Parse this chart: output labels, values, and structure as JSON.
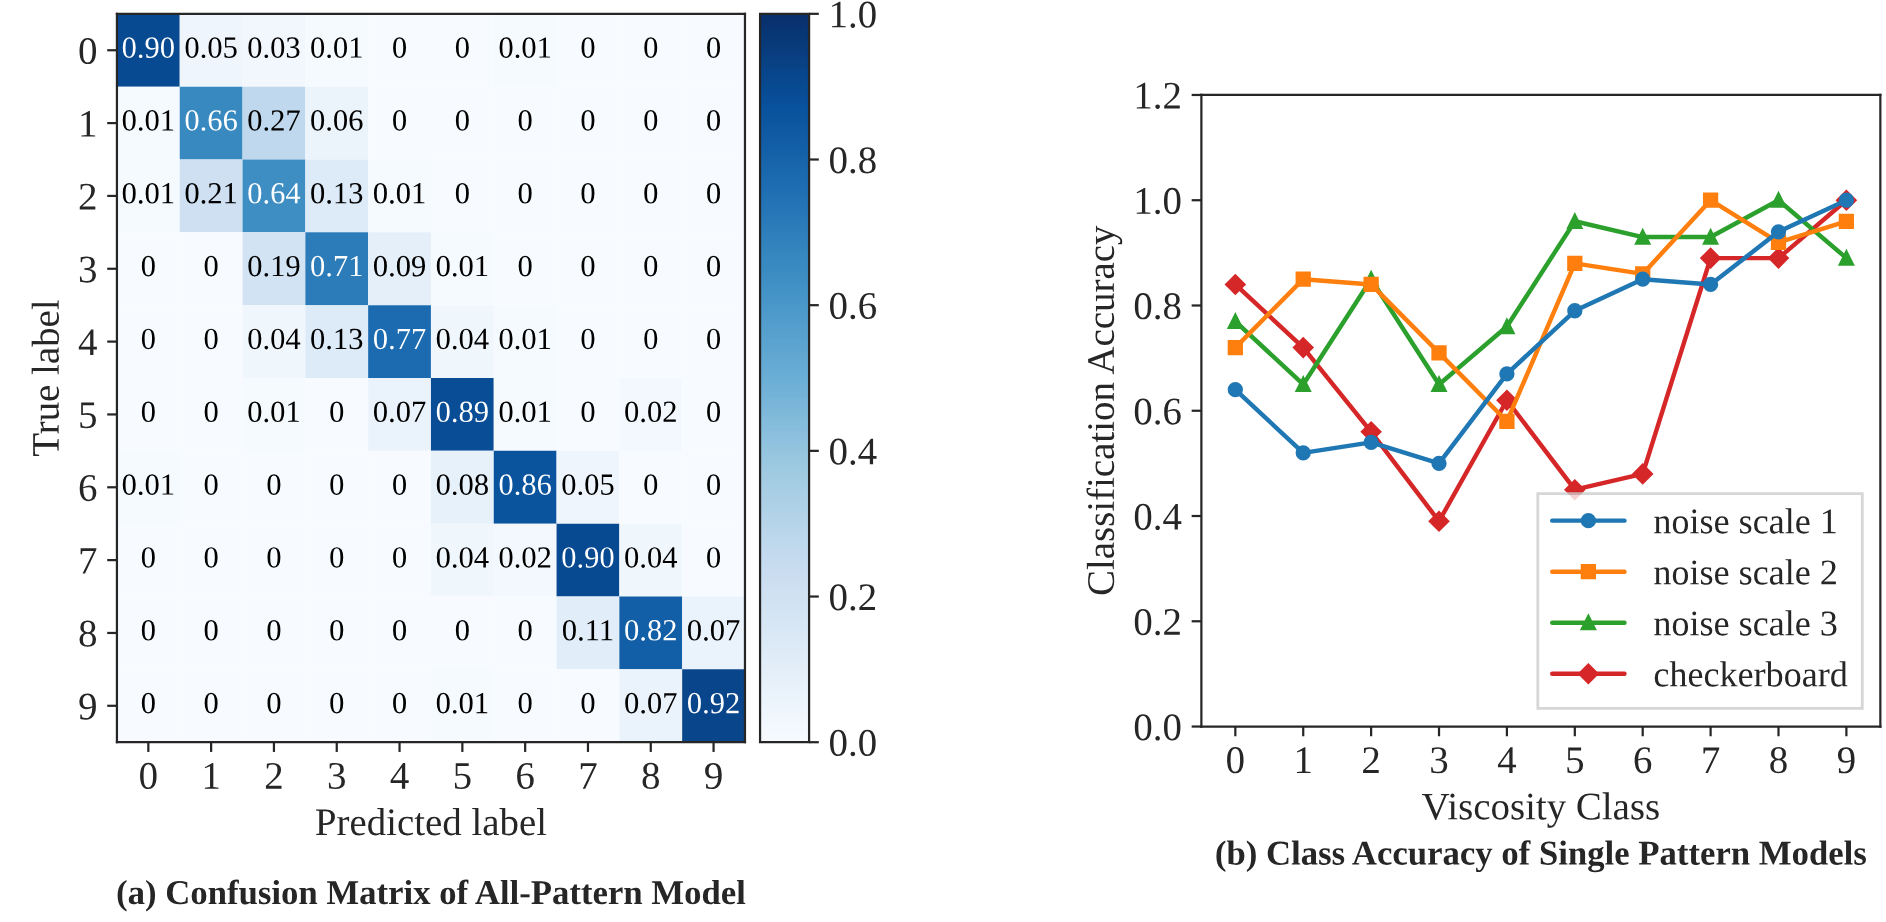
{
  "chart_data": [
    {
      "type": "heatmap",
      "title": "(a) Confusion Matrix of All-Pattern Model",
      "xlabel": "Predicted label",
      "ylabel": "True label",
      "categories": [
        "0",
        "1",
        "2",
        "3",
        "4",
        "5",
        "6",
        "7",
        "8",
        "9"
      ],
      "y_categories": [
        "0",
        "1",
        "2",
        "3",
        "4",
        "5",
        "6",
        "7",
        "8",
        "9"
      ],
      "cells": [
        [
          0.9,
          0.05,
          0.03,
          0.01,
          0,
          0,
          0.01,
          0,
          0,
          0
        ],
        [
          0.01,
          0.66,
          0.27,
          0.06,
          0,
          0,
          0,
          0,
          0,
          0
        ],
        [
          0.01,
          0.21,
          0.64,
          0.13,
          0.01,
          0,
          0,
          0,
          0,
          0
        ],
        [
          0,
          0,
          0.19,
          0.71,
          0.09,
          0.01,
          0,
          0,
          0,
          0
        ],
        [
          0,
          0,
          0.04,
          0.13,
          0.77,
          0.04,
          0.01,
          0,
          0,
          0
        ],
        [
          0,
          0,
          0.01,
          0,
          0.07,
          0.89,
          0.01,
          0,
          0.02,
          0
        ],
        [
          0.01,
          0,
          0,
          0,
          0,
          0.08,
          0.86,
          0.05,
          0,
          0
        ],
        [
          0,
          0,
          0,
          0,
          0,
          0.04,
          0.02,
          0.9,
          0.04,
          0
        ],
        [
          0,
          0,
          0,
          0,
          0,
          0,
          0,
          0.11,
          0.82,
          0.07
        ],
        [
          0,
          0,
          0,
          0,
          0,
          0.01,
          0,
          0,
          0.07,
          0.92
        ]
      ],
      "cell_labels": [
        [
          "0.90",
          "0.05",
          "0.03",
          "0.01",
          "0",
          "0",
          "0.01",
          "0",
          "0",
          "0"
        ],
        [
          "0.01",
          "0.66",
          "0.27",
          "0.06",
          "0",
          "0",
          "0",
          "0",
          "0",
          "0"
        ],
        [
          "0.01",
          "0.21",
          "0.64",
          "0.13",
          "0.01",
          "0",
          "0",
          "0",
          "0",
          "0"
        ],
        [
          "0",
          "0",
          "0.19",
          "0.71",
          "0.09",
          "0.01",
          "0",
          "0",
          "0",
          "0"
        ],
        [
          "0",
          "0",
          "0.04",
          "0.13",
          "0.77",
          "0.04",
          "0.01",
          "0",
          "0",
          "0"
        ],
        [
          "0",
          "0",
          "0.01",
          "0",
          "0.07",
          "0.89",
          "0.01",
          "0",
          "0.02",
          "0"
        ],
        [
          "0.01",
          "0",
          "0",
          "0",
          "0",
          "0.08",
          "0.86",
          "0.05",
          "0",
          "0"
        ],
        [
          "0",
          "0",
          "0",
          "0",
          "0",
          "0.04",
          "0.02",
          "0.90",
          "0.04",
          "0"
        ],
        [
          "0",
          "0",
          "0",
          "0",
          "0",
          "0",
          "0",
          "0.11",
          "0.82",
          "0.07"
        ],
        [
          "0",
          "0",
          "0",
          "0",
          "0",
          "0.01",
          "0",
          "0",
          "0.07",
          "0.92"
        ]
      ],
      "clim": [
        0,
        1
      ],
      "cticks": [
        {
          "value": 0,
          "label": "0.0"
        },
        {
          "value": 0.2,
          "label": "0.2"
        },
        {
          "value": 0.4,
          "label": "0.4"
        },
        {
          "value": 0.6,
          "label": "0.6"
        },
        {
          "value": 0.8,
          "label": "0.8"
        },
        {
          "value": 1,
          "label": "1.0"
        }
      ]
    },
    {
      "type": "line",
      "title": "(b) Class Accuracy of Single Pattern Models",
      "xlabel": "Viscosity Class",
      "ylabel": "Classification Accuracy",
      "categories": [
        "0",
        "1",
        "2",
        "3",
        "4",
        "5",
        "6",
        "7",
        "8",
        "9"
      ],
      "ylim": [
        0,
        1.2
      ],
      "yticks": [
        {
          "value": 0,
          "label": "0.0"
        },
        {
          "value": 0.2,
          "label": "0.2"
        },
        {
          "value": 0.4,
          "label": "0.4"
        },
        {
          "value": 0.6,
          "label": "0.6"
        },
        {
          "value": 0.8,
          "label": "0.8"
        },
        {
          "value": 1,
          "label": "1.0"
        },
        {
          "value": 1.2,
          "label": "1.2"
        }
      ],
      "legend": "bottom right",
      "grid": false,
      "series": [
        {
          "name": "noise scale 1",
          "color": "#1f77b4",
          "marker": "circle",
          "values": [
            0.64,
            0.52,
            0.54,
            0.5,
            0.67,
            0.79,
            0.85,
            0.84,
            0.94,
            1.0
          ]
        },
        {
          "name": "noise scale 2",
          "color": "#ff7f0e",
          "marker": "square",
          "values": [
            0.72,
            0.85,
            0.84,
            0.71,
            0.58,
            0.88,
            0.86,
            1.0,
            0.92,
            0.96
          ]
        },
        {
          "name": "noise scale 3",
          "color": "#2ca02c",
          "marker": "triangle",
          "values": [
            0.77,
            0.65,
            0.85,
            0.65,
            0.76,
            0.96,
            0.93,
            0.93,
            1.0,
            0.89
          ]
        },
        {
          "name": "checkerboard",
          "color": "#d62728",
          "marker": "diamond",
          "values": [
            0.84,
            0.72,
            0.56,
            0.39,
            0.62,
            0.45,
            0.48,
            0.89,
            0.89,
            1.0
          ]
        }
      ]
    }
  ]
}
